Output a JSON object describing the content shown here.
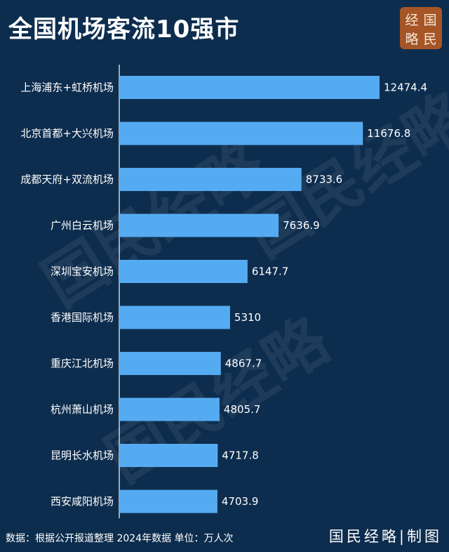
{
  "title": "全国机场客流10强市",
  "seal": [
    "经",
    "国",
    "略",
    "民"
  ],
  "watermark": "国民经略",
  "footer": "数据：根据公开报道整理 2024年数据 单位：万人次",
  "brand": "国民经略|制图",
  "colors": {
    "background": "#0d2d4e",
    "bar": "#55abf1",
    "seal": "#a65526"
  },
  "chart_data": {
    "type": "bar",
    "orientation": "horizontal",
    "title": "全国机场客流10强市",
    "unit": "万人次",
    "categories": [
      "上海浦东+虹桥机场",
      "北京首都+大兴机场",
      "成都天府+双流机场",
      "广州白云机场",
      "深圳宝安机场",
      "香港国际机场",
      "重庆江北机场",
      "杭州萧山机场",
      "昆明长水机场",
      "西安咸阳机场"
    ],
    "values": [
      12474.4,
      11676.8,
      8733.6,
      7636.9,
      6147.7,
      5310,
      4867.7,
      4805.7,
      4717.8,
      4703.9
    ],
    "value_labels": [
      "12474.4",
      "11676.8",
      "8733.6",
      "7636.9",
      "6147.7",
      "5310",
      "4867.7",
      "4805.7",
      "4717.8",
      "4703.9"
    ],
    "xlim": [
      0,
      12474.4
    ],
    "grid": false,
    "legend": "none"
  }
}
